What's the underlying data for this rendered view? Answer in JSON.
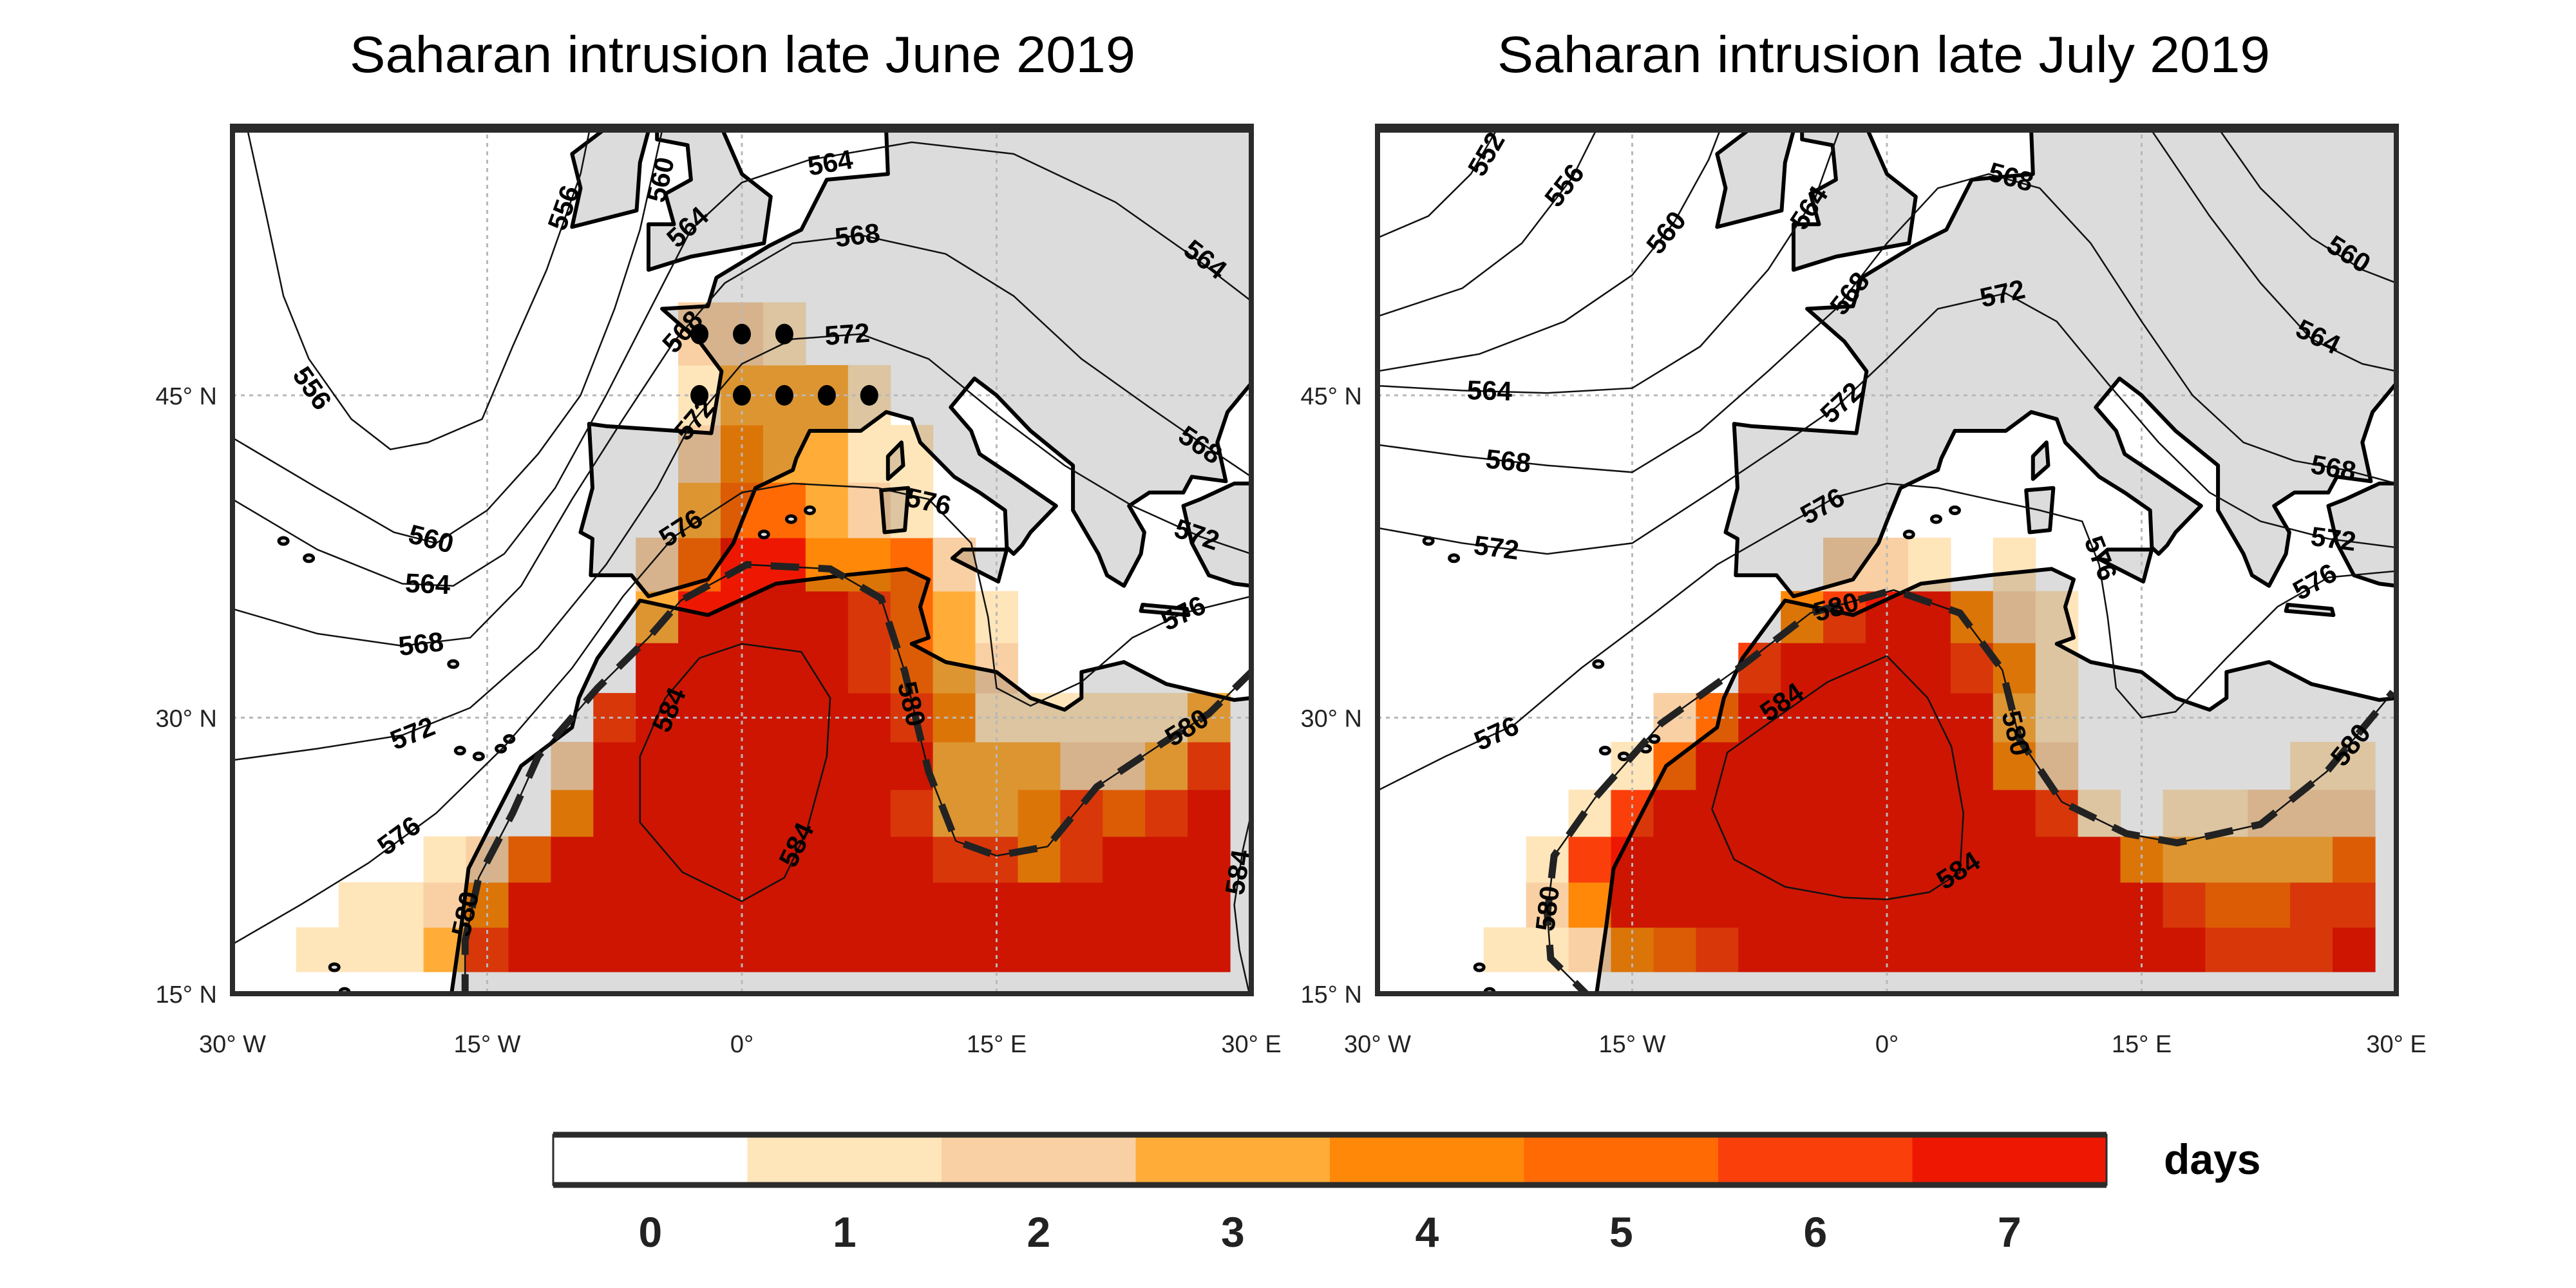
{
  "chart_data": {
    "type": "heatmap",
    "projection": "mercator",
    "grid_spacing_deg": 2.5,
    "lon_range": [
      -30,
      30
    ],
    "lat_range": [
      15,
      55
    ],
    "axes": {
      "lat_ticks": [
        {
          "value": 15,
          "label": "15° N"
        },
        {
          "value": 30,
          "label": "30° N"
        },
        {
          "value": 45,
          "label": "45° N"
        }
      ],
      "lon_ticks": [
        {
          "value": -30,
          "label": "30° W"
        },
        {
          "value": -15,
          "label": "15° W"
        },
        {
          "value": 0,
          "label": "0°"
        },
        {
          "value": 15,
          "label": "15° E"
        },
        {
          "value": 30,
          "label": "30° E"
        }
      ],
      "grid": true
    },
    "colorbar": {
      "label": "days",
      "ticks": [
        "0",
        "1",
        "2",
        "3",
        "4",
        "5",
        "6",
        "7"
      ],
      "colors": [
        "#FFFFFF",
        "#FFE5BA",
        "#F9D0A3",
        "#FFAD38",
        "#FF8808",
        "#FF6A05",
        "#FB3F0B",
        "#EE1802"
      ],
      "placement": "bottom"
    },
    "land_color": "#DCDCDC",
    "panels": [
      {
        "title": "Saharan intrusion late June 2019",
        "cells": [
          {
            "lat": 17.5,
            "runs": [
              [
                -25,
                -20,
                1
              ],
              [
                -17.5,
                -17.5,
                3
              ],
              [
                -15,
                -15,
                6
              ],
              [
                -12.5,
                27.5,
                7
              ]
            ]
          },
          {
            "lat": 20,
            "runs": [
              [
                -22.5,
                -20,
                1
              ],
              [
                -17.5,
                -17.5,
                2
              ],
              [
                -15,
                -15,
                4
              ],
              [
                -12.5,
                27.5,
                7
              ]
            ]
          },
          {
            "lat": 22.5,
            "runs": [
              [
                -17.5,
                -17.5,
                1
              ],
              [
                -15,
                -15,
                2
              ],
              [
                -12.5,
                -12.5,
                5
              ],
              [
                -10,
                10,
                7
              ],
              [
                12.5,
                15,
                6
              ],
              [
                17.5,
                17.5,
                4
              ],
              [
                20,
                20,
                6
              ],
              [
                22.5,
                27.5,
                7
              ]
            ]
          },
          {
            "lat": 25,
            "runs": [
              [
                -10,
                -10,
                4
              ],
              [
                -7.5,
                7.5,
                7
              ],
              [
                10,
                10,
                6
              ],
              [
                12.5,
                15,
                3
              ],
              [
                17.5,
                17.5,
                4
              ],
              [
                20,
                20,
                6
              ],
              [
                22.5,
                22.5,
                5
              ],
              [
                25,
                25,
                6
              ],
              [
                27.5,
                27.5,
                7
              ]
            ]
          },
          {
            "lat": 27.5,
            "runs": [
              [
                -10,
                -10,
                2
              ],
              [
                -7.5,
                10,
                7
              ],
              [
                12.5,
                17.5,
                3
              ],
              [
                20,
                22.5,
                2
              ],
              [
                25,
                25,
                3
              ],
              [
                27.5,
                27.5,
                6
              ]
            ]
          },
          {
            "lat": 30,
            "runs": [
              [
                -7.5,
                -7.5,
                6
              ],
              [
                -5,
                7.5,
                7
              ],
              [
                10,
                10,
                6
              ],
              [
                12.5,
                12.5,
                4
              ],
              [
                15,
                25,
                1
              ],
              [
                27.5,
                27.5,
                3
              ]
            ]
          },
          {
            "lat": 32.5,
            "runs": [
              [
                -5,
                5,
                7
              ],
              [
                7.5,
                7.5,
                6
              ],
              [
                10,
                10,
                5
              ],
              [
                12.5,
                12.5,
                3
              ],
              [
                15,
                15,
                2
              ]
            ]
          },
          {
            "lat": 35,
            "runs": [
              [
                -5,
                -5,
                3
              ],
              [
                -2.5,
                5,
                7
              ],
              [
                7.5,
                7.5,
                6
              ],
              [
                10,
                10,
                5
              ],
              [
                12.5,
                12.5,
                3
              ],
              [
                15,
                15,
                1
              ]
            ]
          },
          {
            "lat": 37.5,
            "runs": [
              [
                -5,
                -5,
                2
              ],
              [
                -2.5,
                -2.5,
                5
              ],
              [
                0,
                2.5,
                7
              ],
              [
                5,
                7.5,
                4
              ],
              [
                10,
                10,
                5
              ],
              [
                12.5,
                12.5,
                2
              ]
            ]
          },
          {
            "lat": 40,
            "runs": [
              [
                -2.5,
                -2.5,
                3
              ],
              [
                0,
                2.5,
                5
              ],
              [
                5,
                5,
                3
              ],
              [
                7.5,
                7.5,
                2
              ],
              [
                10,
                10,
                1
              ]
            ]
          },
          {
            "lat": 42.5,
            "runs": [
              [
                -2.5,
                -2.5,
                2
              ],
              [
                0,
                0,
                4
              ],
              [
                2.5,
                5,
                3
              ],
              [
                7.5,
                10,
                1
              ]
            ]
          },
          {
            "lat": 45,
            "runs": [
              [
                -2.5,
                -2.5,
                1
              ],
              [
                0,
                5,
                3
              ],
              [
                7.5,
                7.5,
                1
              ]
            ]
          },
          {
            "lat": 47.5,
            "runs": [
              [
                -2.5,
                0,
                2
              ],
              [
                2.5,
                2.5,
                1
              ]
            ]
          }
        ],
        "significance_dots": [
          [
            -2.5,
            47.5
          ],
          [
            0,
            47.5
          ],
          [
            2.5,
            47.5
          ],
          [
            -2.5,
            45
          ],
          [
            0,
            45
          ],
          [
            2.5,
            45
          ],
          [
            5,
            45
          ],
          [
            7.5,
            45
          ]
        ],
        "contours": [
          {
            "level": "556"
          },
          {
            "level": "560"
          },
          {
            "level": "564"
          },
          {
            "level": "568"
          },
          {
            "level": "572"
          },
          {
            "level": "576"
          },
          {
            "level": "580"
          },
          {
            "level": "584"
          },
          {
            "level": "584"
          }
        ]
      },
      {
        "title": "Saharan intrusion late July 2019",
        "cells": [
          {
            "lat": 17.5,
            "runs": [
              [
                -22.5,
                -20,
                1
              ],
              [
                -17.5,
                -17.5,
                2
              ],
              [
                -15,
                -15,
                4
              ],
              [
                -12.5,
                -12.5,
                5
              ],
              [
                -10,
                -10,
                6
              ],
              [
                -7.5,
                17.5,
                7
              ],
              [
                20,
                25,
                6
              ],
              [
                27.5,
                27.5,
                7
              ]
            ]
          },
          {
            "lat": 20,
            "runs": [
              [
                -20,
                -20,
                2
              ],
              [
                -17.5,
                -17.5,
                4
              ],
              [
                -15,
                15,
                7
              ],
              [
                17.5,
                17.5,
                6
              ],
              [
                20,
                22.5,
                5
              ],
              [
                25,
                27.5,
                6
              ]
            ]
          },
          {
            "lat": 22.5,
            "runs": [
              [
                -20,
                -20,
                1
              ],
              [
                -17.5,
                -17.5,
                6
              ],
              [
                -15,
                12.5,
                7
              ],
              [
                15,
                15,
                4
              ],
              [
                17.5,
                25,
                3
              ],
              [
                27.5,
                27.5,
                5
              ]
            ]
          },
          {
            "lat": 25,
            "runs": [
              [
                -17.5,
                -17.5,
                1
              ],
              [
                -15,
                -15,
                6
              ],
              [
                -12.5,
                7.5,
                7
              ],
              [
                10,
                10,
                6
              ],
              [
                12.5,
                12.5,
                1
              ],
              [
                17.5,
                20,
                1
              ],
              [
                22.5,
                27.5,
                2
              ]
            ]
          },
          {
            "lat": 27.5,
            "runs": [
              [
                -15,
                -15,
                1
              ],
              [
                -12.5,
                -12.5,
                5
              ],
              [
                -10,
                5,
                7
              ],
              [
                7.5,
                7.5,
                4
              ],
              [
                10,
                10,
                2
              ],
              [
                25,
                27.5,
                1
              ]
            ]
          },
          {
            "lat": 30,
            "runs": [
              [
                -12.5,
                -12.5,
                2
              ],
              [
                -10,
                -10,
                5
              ],
              [
                -7.5,
                5,
                7
              ],
              [
                7.5,
                7.5,
                3
              ],
              [
                10,
                10,
                1
              ]
            ]
          },
          {
            "lat": 32.5,
            "runs": [
              [
                -7.5,
                -7.5,
                6
              ],
              [
                -5,
                2.5,
                7
              ],
              [
                5,
                5,
                6
              ],
              [
                7.5,
                7.5,
                4
              ],
              [
                10,
                10,
                1
              ]
            ]
          },
          {
            "lat": 35,
            "runs": [
              [
                -5,
                -5,
                4
              ],
              [
                -2.5,
                -2.5,
                6
              ],
              [
                0,
                2.5,
                7
              ],
              [
                5,
                5,
                4
              ],
              [
                7.5,
                7.5,
                2
              ],
              [
                10,
                10,
                1
              ]
            ]
          },
          {
            "lat": 37.5,
            "runs": [
              [
                -2.5,
                0,
                2
              ],
              [
                2.5,
                2.5,
                1
              ],
              [
                7.5,
                7.5,
                1
              ]
            ]
          }
        ],
        "significance_dots": [],
        "contours": [
          {
            "level": "552"
          },
          {
            "level": "556"
          },
          {
            "level": "560"
          },
          {
            "level": "560"
          },
          {
            "level": "564"
          },
          {
            "level": "564"
          },
          {
            "level": "568"
          },
          {
            "level": "572"
          },
          {
            "level": "576"
          },
          {
            "level": "580"
          },
          {
            "level": "584"
          }
        ]
      }
    ]
  }
}
